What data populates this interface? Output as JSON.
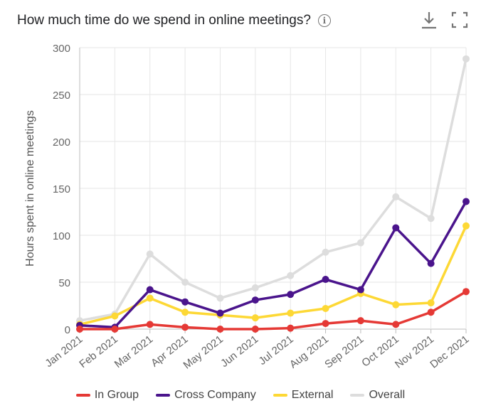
{
  "header": {
    "title": "How much time do we spend in online meetings?",
    "info_icon": "info-icon",
    "download_icon": "download-icon",
    "fullscreen_icon": "fullscreen-icon"
  },
  "chart_data": {
    "type": "line",
    "title": "How much time do we spend in online meetings?",
    "xlabel": "",
    "ylabel": "Hours spent in online meetings",
    "ylim": [
      0,
      300
    ],
    "yticks": [
      0,
      50,
      100,
      150,
      200,
      250,
      300
    ],
    "grid": true,
    "legend_position": "bottom",
    "categories": [
      "Jan 2021",
      "Feb 2021",
      "Mar 2021",
      "Apr 2021",
      "May 2021",
      "Jun 2021",
      "Jul 2021",
      "Aug 2021",
      "Sep 2021",
      "Oct 2021",
      "Nov 2021",
      "Dec 2021"
    ],
    "series": [
      {
        "name": "In Group",
        "color": "#e53935",
        "values": [
          0,
          0,
          5,
          2,
          0,
          0,
          1,
          6,
          9,
          5,
          18,
          40
        ]
      },
      {
        "name": "Cross Company",
        "color": "#4a148c",
        "values": [
          4,
          2,
          42,
          29,
          17,
          31,
          37,
          53,
          42,
          108,
          70,
          136
        ]
      },
      {
        "name": "External",
        "color": "#fdd835",
        "values": [
          5,
          14,
          33,
          18,
          15,
          12,
          17,
          22,
          38,
          26,
          28,
          110
        ]
      },
      {
        "name": "Overall",
        "color": "#dddddd",
        "values": [
          9,
          16,
          80,
          50,
          33,
          44,
          57,
          82,
          92,
          141,
          118,
          288
        ]
      }
    ]
  }
}
